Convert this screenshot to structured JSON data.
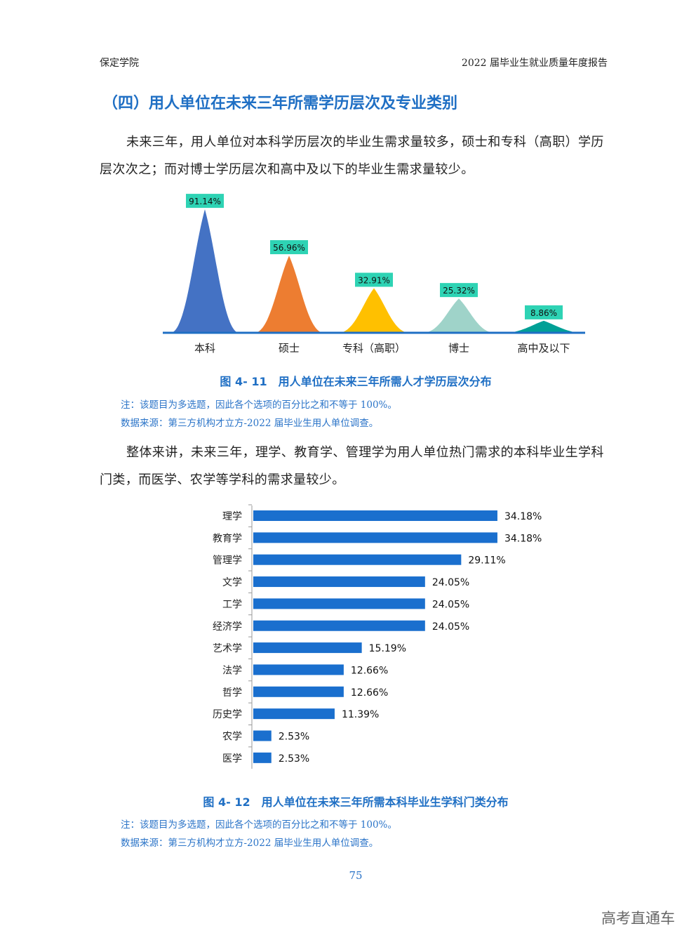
{
  "header": {
    "left": "保定学院",
    "right": "2022 届毕业生就业质量年度报告"
  },
  "section_title": "（四）用人单位在未来三年所需学历层次及专业类别",
  "para1": "未来三年，用人单位对本科学历层次的毕业生需求量较多，硕士和专科（高职）学历层次次之；而对博士学历层次和高中及以下的毕业生需求量较少。",
  "para2": "整体来讲，未来三年，理学、教育学、管理学为用人单位热门需求的本科毕业生学科门类，而医学、农学等学科的需求量较少。",
  "chart_data": [
    {
      "type": "area",
      "title": "图 4- 11　用人单位在未来三年所需人才学历层次分布",
      "categories": [
        "本科",
        "硕士",
        "专科（高职）",
        "博士",
        "高中及以下"
      ],
      "values": [
        91.14,
        56.96,
        32.91,
        25.32,
        8.86
      ],
      "labels": [
        "91.14%",
        "56.96%",
        "32.91%",
        "25.32%",
        "8.86%"
      ],
      "colors": [
        "#4472c4",
        "#ed7d31",
        "#ffc000",
        "#9fd3c9",
        "#00a096"
      ],
      "label_bg": "#2ed3b4",
      "ylim": [
        0,
        100
      ]
    },
    {
      "type": "bar",
      "orientation": "horizontal",
      "title": "图 4- 12　用人单位在未来三年所需本科毕业生学科门类分布",
      "categories": [
        "理学",
        "教育学",
        "管理学",
        "文学",
        "工学",
        "经济学",
        "艺术学",
        "法学",
        "哲学",
        "历史学",
        "农学",
        "医学"
      ],
      "values": [
        34.18,
        34.18,
        29.11,
        24.05,
        24.05,
        24.05,
        15.19,
        12.66,
        12.66,
        11.39,
        2.53,
        2.53
      ],
      "labels": [
        "34.18%",
        "34.18%",
        "29.11%",
        "24.05%",
        "24.05%",
        "24.05%",
        "15.19%",
        "12.66%",
        "12.66%",
        "11.39%",
        "2.53%",
        "2.53%"
      ],
      "color": "#1a6fce",
      "xlim": [
        0,
        40
      ]
    }
  ],
  "notes1": {
    "note": "注：该题目为多选题，因此各个选项的百分比之和不等于 100%。",
    "source": "数据来源：第三方机构才立方-2022 届毕业生用人单位调查。"
  },
  "notes2": {
    "note": "注：该题目为多选题，因此各个选项的百分比之和不等于 100%。",
    "source": "数据来源：第三方机构才立方-2022 届毕业生用人单位调查。"
  },
  "page_number": "75",
  "watermark": "高考直通车"
}
